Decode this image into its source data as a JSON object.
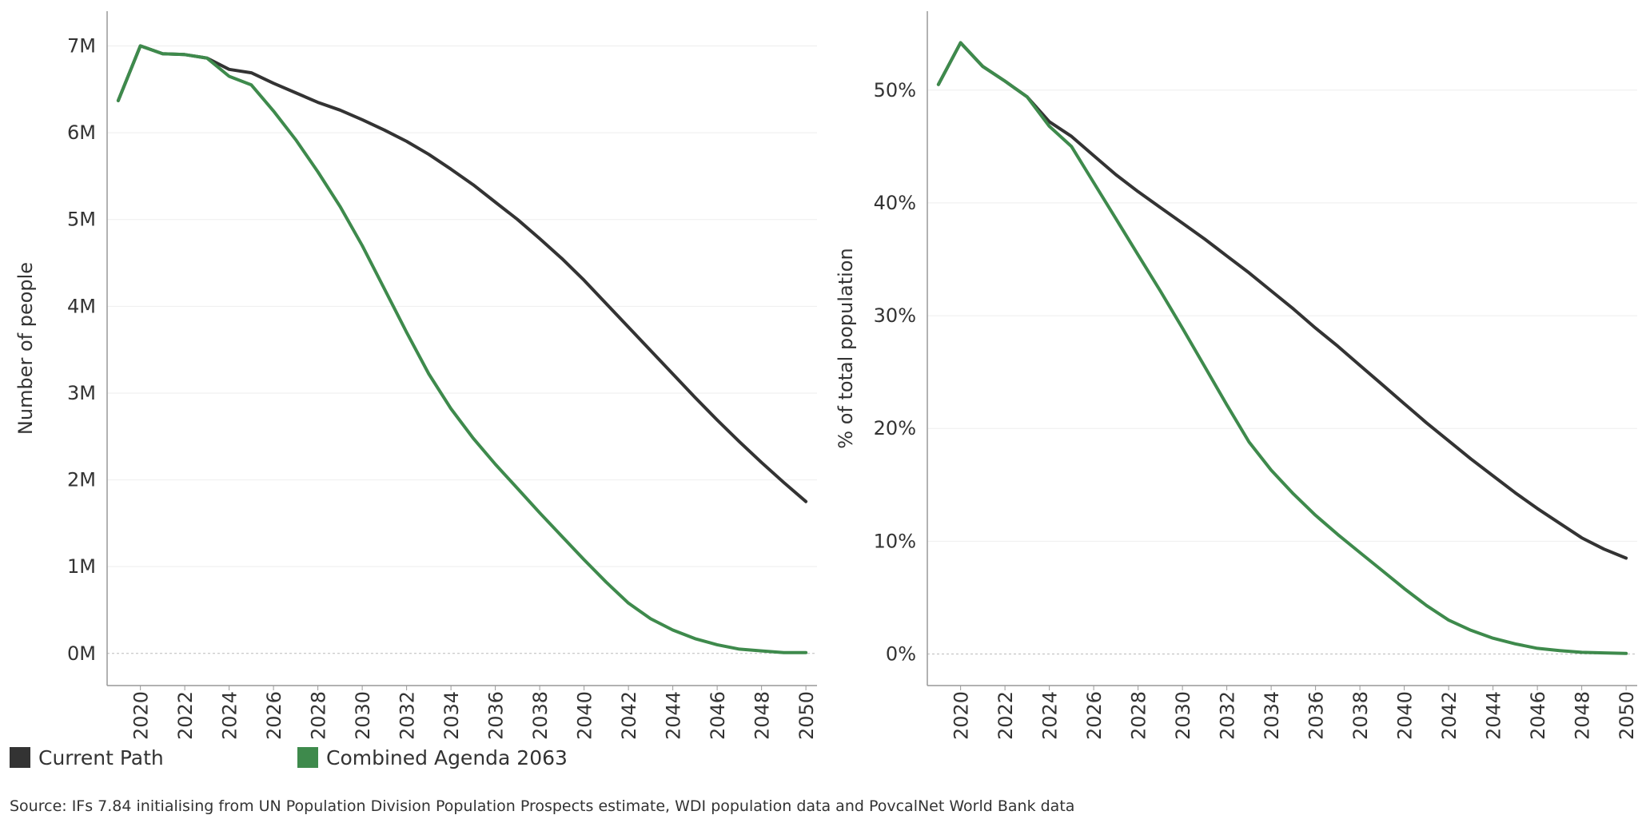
{
  "colors": {
    "current_path": "#333333",
    "combined_agenda": "#3e8a4c",
    "grid": "#eeeeee",
    "axis": "#999999"
  },
  "legend": [
    {
      "label": "Current Path",
      "color": "#333333"
    },
    {
      "label": "Combined Agenda 2063",
      "color": "#3e8a4c"
    }
  ],
  "source": "Source: IFs 7.84 initialising from UN Population Division Population Prospects estimate, WDI population data and PovcalNet World Bank data",
  "chart_data": [
    {
      "type": "line",
      "ylabel": "Number of people",
      "xlim": [
        2018.5,
        2050.5
      ],
      "ylim": [
        -0.37,
        7.4
      ],
      "x_ticks": [
        2020,
        2022,
        2024,
        2026,
        2028,
        2030,
        2032,
        2034,
        2036,
        2038,
        2040,
        2042,
        2044,
        2046,
        2048,
        2050
      ],
      "y_ticks": [
        {
          "value": 0,
          "label": "0M"
        },
        {
          "value": 1,
          "label": "1M"
        },
        {
          "value": 2,
          "label": "2M"
        },
        {
          "value": 3,
          "label": "3M"
        },
        {
          "value": 4,
          "label": "4M"
        },
        {
          "value": 5,
          "label": "5M"
        },
        {
          "value": 6,
          "label": "6M"
        },
        {
          "value": 7,
          "label": "7M"
        }
      ],
      "grid": "horizontal",
      "x": [
        2019,
        2020,
        2021,
        2022,
        2023,
        2024,
        2025,
        2026,
        2027,
        2028,
        2029,
        2030,
        2031,
        2032,
        2033,
        2034,
        2035,
        2036,
        2037,
        2038,
        2039,
        2040,
        2041,
        2042,
        2043,
        2044,
        2045,
        2046,
        2047,
        2048,
        2049,
        2050
      ],
      "series": [
        {
          "name": "Current Path",
          "values": [
            6.37,
            7.0,
            6.91,
            6.9,
            6.86,
            6.73,
            6.69,
            6.57,
            6.46,
            6.35,
            6.26,
            6.15,
            6.03,
            5.9,
            5.75,
            5.58,
            5.4,
            5.2,
            5.0,
            4.78,
            4.55,
            4.3,
            4.03,
            3.76,
            3.49,
            3.22,
            2.95,
            2.69,
            2.44,
            2.2,
            1.97,
            1.75
          ]
        },
        {
          "name": "Combined Agenda 2063",
          "values": [
            6.37,
            7.0,
            6.91,
            6.9,
            6.86,
            6.65,
            6.55,
            6.25,
            5.92,
            5.55,
            5.15,
            4.7,
            4.2,
            3.7,
            3.22,
            2.82,
            2.48,
            2.18,
            1.9,
            1.62,
            1.35,
            1.08,
            0.82,
            0.58,
            0.4,
            0.27,
            0.17,
            0.1,
            0.05,
            0.03,
            0.01,
            0.01
          ]
        }
      ]
    },
    {
      "type": "line",
      "ylabel": "% of total population",
      "xlim": [
        2018.5,
        2050.5
      ],
      "ylim": [
        -2.8,
        57.0
      ],
      "x_ticks": [
        2020,
        2022,
        2024,
        2026,
        2028,
        2030,
        2032,
        2034,
        2036,
        2038,
        2040,
        2042,
        2044,
        2046,
        2048,
        2050
      ],
      "y_ticks": [
        {
          "value": 0,
          "label": "0%"
        },
        {
          "value": 10,
          "label": "10%"
        },
        {
          "value": 20,
          "label": "20%"
        },
        {
          "value": 30,
          "label": "30%"
        },
        {
          "value": 40,
          "label": "40%"
        },
        {
          "value": 50,
          "label": "50%"
        }
      ],
      "grid": "horizontal",
      "x": [
        2019,
        2020,
        2021,
        2022,
        2023,
        2024,
        2025,
        2026,
        2027,
        2028,
        2029,
        2030,
        2031,
        2032,
        2033,
        2034,
        2035,
        2036,
        2037,
        2038,
        2039,
        2040,
        2041,
        2042,
        2043,
        2044,
        2045,
        2046,
        2047,
        2048,
        2049,
        2050
      ],
      "series": [
        {
          "name": "Current Path",
          "values": [
            50.5,
            54.2,
            52.1,
            50.8,
            49.4,
            47.2,
            45.9,
            44.2,
            42.5,
            41.0,
            39.6,
            38.2,
            36.8,
            35.3,
            33.8,
            32.2,
            30.6,
            28.9,
            27.3,
            25.6,
            23.9,
            22.2,
            20.5,
            18.9,
            17.3,
            15.8,
            14.3,
            12.9,
            11.6,
            10.3,
            9.3,
            8.5
          ]
        },
        {
          "name": "Combined Agenda 2063",
          "values": [
            50.5,
            54.2,
            52.1,
            50.8,
            49.4,
            46.8,
            45.0,
            41.8,
            38.6,
            35.4,
            32.2,
            28.9,
            25.5,
            22.1,
            18.8,
            16.3,
            14.2,
            12.3,
            10.6,
            9.0,
            7.4,
            5.8,
            4.3,
            3.0,
            2.1,
            1.4,
            0.9,
            0.5,
            0.3,
            0.15,
            0.1,
            0.05
          ]
        }
      ]
    }
  ]
}
